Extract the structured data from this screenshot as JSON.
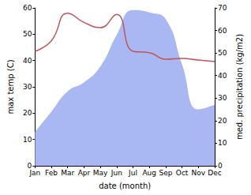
{
  "chart_data": {
    "type": "line",
    "xlabel": "date (month)",
    "ylabel": "max temp (C)",
    "y2label": "med. precipitation (kg/m2)",
    "categories": [
      "Jan",
      "Feb",
      "Mar",
      "Apr",
      "May",
      "Jun",
      "Jul",
      "Aug",
      "Sep",
      "Oct",
      "Nov",
      "Dec"
    ],
    "series": [
      {
        "name": "max temp",
        "type": "line",
        "color": "#c1555a",
        "values": [
          43.5,
          47.5,
          58,
          54.5,
          52.5,
          57.5,
          43.5,
          43,
          40.5,
          40.8,
          40.2,
          39.6
        ]
      },
      {
        "name": "med. precipitation",
        "type": "area",
        "axis": "y2",
        "color": "#a9b7f2",
        "values": [
          15,
          24,
          33,
          37,
          44,
          58,
          69,
          68,
          65,
          45,
          25,
          27
        ]
      }
    ],
    "ylim": [
      0,
      60
    ],
    "yticks": [
      0,
      10,
      20,
      30,
      40,
      50,
      60
    ],
    "y2lim": [
      0,
      70
    ],
    "y2ticks": [
      0,
      10,
      20,
      30,
      40,
      50,
      60,
      70
    ],
    "grid": false
  }
}
